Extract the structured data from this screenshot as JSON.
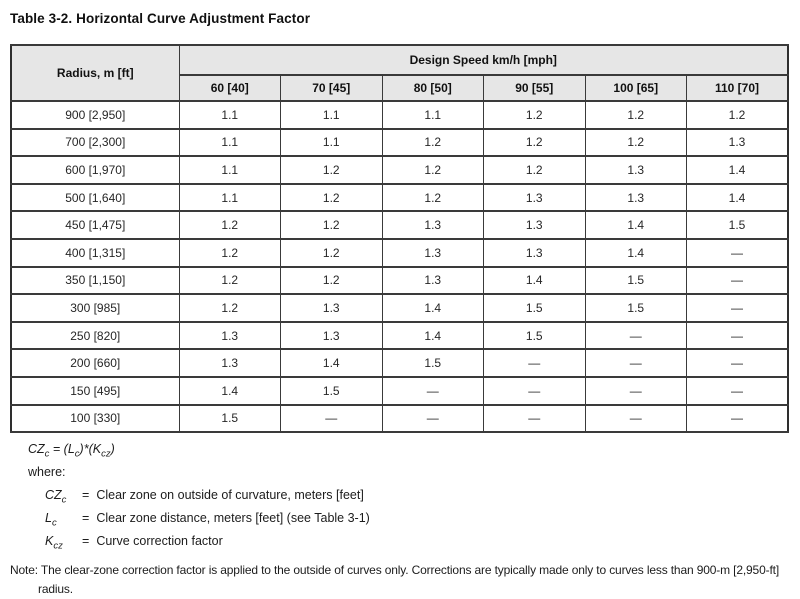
{
  "title": "Table 3-2. Horizontal Curve Adjustment Factor",
  "table": {
    "radius_header": "Radius, m [ft]",
    "speed_group_header": "Design Speed km/h [mph]",
    "speed_headers": [
      "60 [40]",
      "70 [45]",
      "80 [50]",
      "90 [55]",
      "100 [65]",
      "110 [70]"
    ],
    "rows": [
      {
        "radius": "900 [2,950]",
        "values": [
          "1.1",
          "1.1",
          "1.1",
          "1.2",
          "1.2",
          "1.2"
        ]
      },
      {
        "radius": "700 [2,300]",
        "values": [
          "1.1",
          "1.1",
          "1.2",
          "1.2",
          "1.2",
          "1.3"
        ]
      },
      {
        "radius": "600 [1,970]",
        "values": [
          "1.1",
          "1.2",
          "1.2",
          "1.2",
          "1.3",
          "1.4"
        ]
      },
      {
        "radius": "500 [1,640]",
        "values": [
          "1.1",
          "1.2",
          "1.2",
          "1.3",
          "1.3",
          "1.4"
        ]
      },
      {
        "radius": "450 [1,475]",
        "values": [
          "1.2",
          "1.2",
          "1.3",
          "1.3",
          "1.4",
          "1.5"
        ]
      },
      {
        "radius": "400 [1,315]",
        "values": [
          "1.2",
          "1.2",
          "1.3",
          "1.3",
          "1.4",
          "—"
        ]
      },
      {
        "radius": "350 [1,150]",
        "values": [
          "1.2",
          "1.2",
          "1.3",
          "1.4",
          "1.5",
          "—"
        ]
      },
      {
        "radius": "300 [985]",
        "values": [
          "1.2",
          "1.3",
          "1.4",
          "1.5",
          "1.5",
          "—"
        ]
      },
      {
        "radius": "250 [820]",
        "values": [
          "1.3",
          "1.3",
          "1.4",
          "1.5",
          "—",
          "—"
        ]
      },
      {
        "radius": "200 [660]",
        "values": [
          "1.3",
          "1.4",
          "1.5",
          "—",
          "—",
          "—"
        ]
      },
      {
        "radius": "150 [495]",
        "values": [
          "1.4",
          "1.5",
          "—",
          "—",
          "—",
          "—"
        ]
      },
      {
        "radius": "100 [330]",
        "values": [
          "1.5",
          "—",
          "—",
          "—",
          "—",
          "—"
        ]
      }
    ]
  },
  "formula": {
    "var": "CZ",
    "var_sub": "c",
    "eq": " = ",
    "open": "(",
    "var2": "L",
    "var2_sub": "c",
    "mid": ")*(",
    "var3": "K",
    "var3_sub": "cz",
    "close": ")"
  },
  "definitions": {
    "where_label": "where:",
    "items": [
      {
        "sym": "CZ",
        "sub": "c",
        "eq": "=",
        "text": "Clear zone on outside of curvature, meters [feet]"
      },
      {
        "sym": "L",
        "sub": "c",
        "eq": "=",
        "text": "Clear zone distance, meters [feet] (see Table 3-1)"
      },
      {
        "sym": "K",
        "sub": "cz",
        "eq": "=",
        "text": "Curve correction factor"
      }
    ]
  },
  "note": {
    "label": "Note:",
    "text": "The clear-zone correction factor is applied to the outside of curves only. Corrections are typically made only to curves less than 900-m [2,950-ft] radius."
  },
  "colors": {
    "header_fill": "#e6e6e6",
    "border": "#3a3a3a",
    "text": "#1c1c1c"
  }
}
